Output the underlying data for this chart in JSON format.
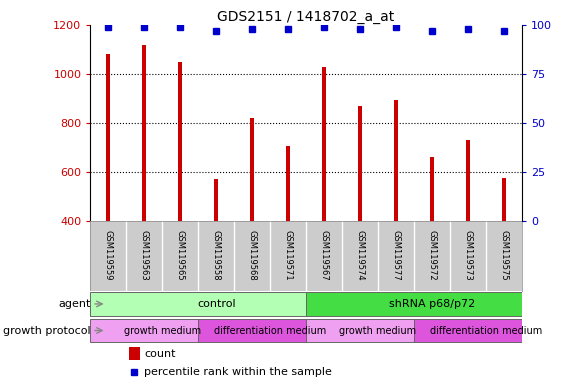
{
  "title": "GDS2151 / 1418702_a_at",
  "samples": [
    "GSM119559",
    "GSM119563",
    "GSM119565",
    "GSM119558",
    "GSM119568",
    "GSM119571",
    "GSM119567",
    "GSM119574",
    "GSM119577",
    "GSM119572",
    "GSM119573",
    "GSM119575"
  ],
  "counts": [
    1080,
    1120,
    1048,
    570,
    820,
    705,
    1030,
    868,
    895,
    660,
    730,
    575
  ],
  "percentiles": [
    99,
    99,
    99,
    97,
    98,
    98,
    99,
    98,
    99,
    97,
    98,
    97
  ],
  "bar_color": "#cc0000",
  "dot_color": "#0000cc",
  "ylim_left": [
    400,
    1200
  ],
  "ylim_right": [
    0,
    100
  ],
  "yticks_left": [
    400,
    600,
    800,
    1000,
    1200
  ],
  "yticks_right": [
    0,
    25,
    50,
    75,
    100
  ],
  "agent_groups": [
    {
      "label": "control",
      "start": 0,
      "end": 6,
      "color": "#b3ffb3"
    },
    {
      "label": "shRNA p68/p72",
      "start": 6,
      "end": 12,
      "color": "#44dd44"
    }
  ],
  "growth_groups": [
    {
      "label": "growth medium",
      "start": 0,
      "end": 3,
      "color": "#f0a0f0"
    },
    {
      "label": "differentiation medium",
      "start": 3,
      "end": 6,
      "color": "#dd55dd"
    },
    {
      "label": "growth medium",
      "start": 6,
      "end": 9,
      "color": "#f0a0f0"
    },
    {
      "label": "differentiation medium",
      "start": 9,
      "end": 12,
      "color": "#dd55dd"
    }
  ],
  "agent_label": "agent",
  "growth_label": "growth protocol",
  "legend_count_label": "count",
  "legend_pct_label": "percentile rank within the sample",
  "background_color": "#ffffff",
  "tick_color_left": "#cc0000",
  "tick_color_right": "#0000cc",
  "grid_color": "#000000",
  "sample_bg_color": "#cccccc",
  "bar_width": 0.12,
  "height_ratios": [
    2.8,
    1.0,
    0.38,
    0.38,
    0.52
  ]
}
